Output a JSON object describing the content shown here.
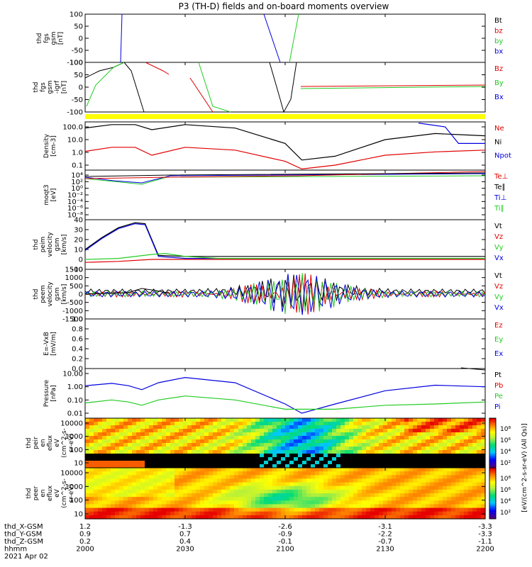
{
  "title": "P3 (TH-D) fields and on-board moments overview",
  "colors": {
    "black": "#000000",
    "red": "#e00000",
    "green": "#22cc22",
    "blue": "#0000e0",
    "yellow": "#ffff00"
  },
  "chart_data": {
    "type": "line",
    "time_axis": {
      "start_hhmm": "2000",
      "end_hhmm": "2200",
      "tick_hhmm": [
        "2000",
        "2030",
        "2100",
        "2130",
        "2200"
      ],
      "date_label": "2021 Apr 02"
    },
    "ephemeris": {
      "row_labels": [
        "thd_X-GSM",
        "thd_Y-GSM",
        "thd_Z-GSM",
        "hhmm"
      ],
      "X": [
        "1.2",
        "-1.3",
        "-2.6",
        "-3.1",
        "-3.3"
      ],
      "Y": [
        "0.9",
        "0.7",
        "-0.9",
        "-2.2",
        "-3.3"
      ],
      "Z": [
        "0.2",
        "0.4",
        "-0.1",
        "-0.7",
        "-1.1"
      ]
    },
    "panels": [
      {
        "ylabel": [
          "thd",
          "fgs",
          "gsm",
          "[nT]"
        ],
        "ylim": [
          -100,
          100
        ],
        "ytick_labels": [
          "100",
          "50",
          "0",
          "-50",
          "-100"
        ],
        "legend": [
          "Bt",
          "bz",
          "by",
          "bx"
        ],
        "legend_colors": [
          "black",
          "red",
          "green",
          "blue"
        ]
      },
      {
        "ylabel": [
          "thd",
          "fgs",
          "gsm",
          "-igrf",
          "[nT]"
        ],
        "ylim": [
          -120,
          120
        ],
        "ytick_labels": [
          "100",
          "50",
          "0",
          "-50",
          "-100"
        ],
        "legend": [
          "Bz",
          "By",
          "Bx"
        ],
        "legend_colors": [
          "red",
          "green",
          "blue"
        ]
      },
      {
        "ylabel": [
          "Density",
          "[cm-3]"
        ],
        "scale": "log",
        "ytick_labels": [
          "100.0",
          "10.0",
          "1.0",
          "0.1"
        ],
        "legend": [
          "Ne",
          "Ni",
          "Npot"
        ],
        "legend_colors": [
          "red",
          "black",
          "blue"
        ],
        "series": [
          {
            "name": "Ni",
            "color": "black",
            "x": [
              0,
              8,
              15,
              20,
              30,
              45,
              60,
              65,
              75,
              90,
              105,
              120
            ],
            "y": [
              80,
              150,
              150,
              60,
              150,
              80,
              5,
              0.25,
              0.5,
              10,
              30,
              20
            ]
          },
          {
            "name": "Ne",
            "color": "red",
            "x": [
              0,
              8,
              15,
              20,
              30,
              45,
              60,
              65,
              75,
              90,
              105,
              120
            ],
            "y": [
              1.2,
              2.5,
              2.5,
              0.6,
              2.5,
              1.5,
              0.2,
              0.05,
              0.1,
              0.6,
              1.1,
              1.5
            ]
          },
          {
            "name": "Npot",
            "color": "blue",
            "x": [
              100,
              108,
              112,
              120
            ],
            "y": [
              200,
              100,
              5,
              5
            ]
          }
        ]
      },
      {
        "ylabel": [
          "moqt3",
          "[eV]"
        ],
        "scale": "log",
        "ytick_labels": [
          "10⁴",
          "10²",
          "10⁰",
          "10⁻²",
          "10⁻⁴",
          "10⁻⁶",
          "10⁻⁸"
        ],
        "legend": [
          "Te⊥",
          "Te∥",
          "Ti⊥",
          "Ti∥"
        ],
        "legend_colors": [
          "red",
          "black",
          "blue",
          "green"
        ]
      },
      {
        "ylabel": [
          "thd",
          "peim",
          "velocity",
          "gsm",
          "[km/s]"
        ],
        "ylim": [
          -10,
          40
        ],
        "ytick_labels": [
          "40",
          "30",
          "20",
          "10",
          "0",
          "-10"
        ],
        "legend": [
          "Vt",
          "Vz",
          "Vy",
          "Vx"
        ],
        "legend_colors": [
          "black",
          "red",
          "green",
          "blue"
        ],
        "series": [
          {
            "name": "Vt",
            "color": "black",
            "x": [
              0,
              5,
              10,
              15,
              18,
              20,
              22,
              30,
              120
            ],
            "y": [
              10,
              22,
              32,
              37,
              36,
              20,
              4,
              3,
              3
            ]
          },
          {
            "name": "Vx",
            "color": "blue",
            "x": [
              0,
              5,
              10,
              15,
              18,
              20,
              22,
              30,
              120
            ],
            "y": [
              9,
              21,
              31,
              36,
              35,
              19,
              3,
              1,
              1
            ]
          },
          {
            "name": "Vy",
            "color": "green",
            "x": [
              0,
              10,
              20,
              24,
              30,
              40,
              120
            ],
            "y": [
              0,
              1,
              5,
              6,
              3,
              1,
              1
            ]
          },
          {
            "name": "Vz",
            "color": "red",
            "x": [
              0,
              10,
              20,
              30,
              120
            ],
            "y": [
              -3,
              -2,
              0,
              0,
              0
            ]
          }
        ]
      },
      {
        "ylabel": [
          "thd",
          "peem",
          "velocity",
          "gsm",
          "[km/s]"
        ],
        "ylim": [
          -1500,
          1500
        ],
        "ytick_labels": [
          "1500",
          "1000",
          "500",
          "0",
          "-500",
          "-1000",
          "-1500"
        ],
        "legend": [
          "Vt",
          "Vz",
          "Vy",
          "Vx"
        ],
        "legend_colors": [
          "black",
          "red",
          "green",
          "blue"
        ]
      },
      {
        "ylabel": [
          "E=-VxB",
          "[mV/m]"
        ],
        "ylim": [
          0,
          1
        ],
        "ytick_labels": [
          "1.0",
          "0.8",
          "0.6",
          "0.4",
          "0.2",
          "0.0"
        ],
        "legend": [
          "Ez",
          "Ey",
          "Ex"
        ],
        "legend_colors": [
          "red",
          "green",
          "blue"
        ]
      },
      {
        "ylabel": [
          "Pressure",
          "[nPa]"
        ],
        "scale": "log",
        "ytick_labels": [
          "10.00",
          "1.00",
          "0.10",
          "0.01"
        ],
        "legend": [
          "Pt",
          "Pb",
          "Pe",
          "Pi"
        ],
        "legend_colors": [
          "black",
          "red",
          "green",
          "blue"
        ],
        "series": [
          {
            "name": "Pi",
            "color": "blue",
            "x": [
              0,
              8,
              13,
              17,
              22,
              30,
              45,
              60,
              65,
              75,
              90,
              105,
              120
            ],
            "y": [
              1.2,
              1.8,
              1.2,
              0.6,
              2,
              5,
              2,
              0.05,
              0.01,
              0.05,
              0.5,
              1.3,
              1
            ]
          },
          {
            "name": "Pe",
            "color": "green",
            "x": [
              0,
              8,
              13,
              17,
              22,
              30,
              45,
              60,
              65,
              75,
              90,
              105,
              120
            ],
            "y": [
              0.06,
              0.1,
              0.07,
              0.04,
              0.1,
              0.2,
              0.1,
              0.02,
              0.02,
              0.02,
              0.04,
              0.05,
              0.07
            ]
          }
        ]
      },
      {
        "ylabel": [
          "thd",
          "peir",
          "en",
          "eflux",
          "eV",
          "(cm^2-s-",
          "sr-eV)"
        ],
        "scale": "log",
        "ytick_labels": [
          "10000",
          "1000",
          "100",
          "10"
        ]
      },
      {
        "ylabel": [
          "thd",
          "peer",
          "en",
          "eflux",
          "eV",
          "(cm^2-s-",
          "sr-eV)"
        ],
        "scale": "log",
        "ytick_labels": [
          "10000",
          "1000",
          "100",
          "10"
        ]
      }
    ],
    "colorbar": {
      "label": "[eV/(cm^2-s-sr-eV) (All Qs)]",
      "tick_labels": [
        "10⁸",
        "10⁶",
        "10⁴",
        "10²"
      ]
    }
  }
}
